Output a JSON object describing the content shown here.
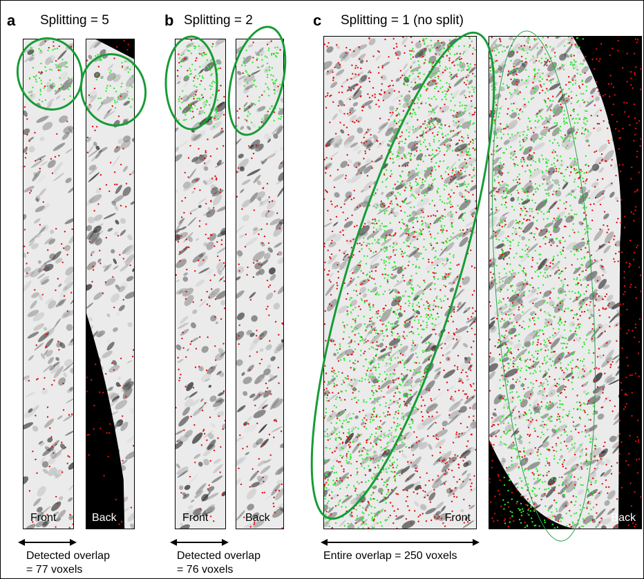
{
  "panels": [
    {
      "letter": "a",
      "title": "Splitting = 5",
      "front_label": "Front",
      "back_label": "Back",
      "caption_line1": "Detected overlap",
      "caption_line2": "= 77 voxels"
    },
    {
      "letter": "b",
      "title": "Splitting = 2",
      "front_label": "Front",
      "back_label": "Back",
      "caption_line1": "Detected overlap",
      "caption_line2": "= 76 voxels"
    },
    {
      "letter": "c",
      "title": "Splitting = 1 (no split)",
      "front_label": "Front",
      "back_label": "Back",
      "caption_line1": "Entire overlap = 250 voxels",
      "caption_line2": ""
    }
  ],
  "colors": {
    "ellipse": "#169c35",
    "match_point": "#33e633",
    "mismatch_point": "#e01010",
    "tissue_dark": "#1a1a1a",
    "background_black": "#000000"
  }
}
